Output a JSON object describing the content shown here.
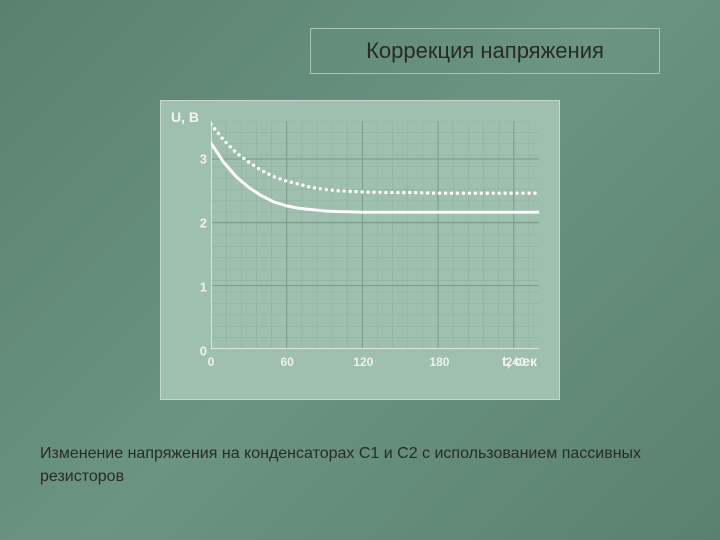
{
  "title": "Коррекция напряжения",
  "caption": "Изменение напряжения на конденсаторах С1 и С2 с использованием пассивных резисторов",
  "chart": {
    "type": "line",
    "background_color": "#9fbfaf",
    "panel_border": "#c5d8cf",
    "grid_major_color": "#7a9a8a",
    "grid_minor_color": "#8fae9e",
    "axis_color": "#f0f0f0",
    "y_axis_label": "U, В",
    "x_axis_label": "t, сек",
    "label_color": "#f5f5f5",
    "label_fontsize": 14,
    "tick_fontsize": 13,
    "tick_color": "#f0f0f0",
    "xlim": [
      0,
      260
    ],
    "ylim": [
      0,
      3.6
    ],
    "x_ticks": [
      0,
      60,
      120,
      180,
      240
    ],
    "y_ticks": [
      0,
      1,
      2,
      3
    ],
    "x_minor_step": 12,
    "y_minor_step": 0.18,
    "series": [
      {
        "name": "C1_dotted",
        "style": "dotted",
        "color": "#ffffff",
        "width": 2.5,
        "dot_radius": 1.7,
        "dot_gap": 6,
        "points": [
          [
            0,
            3.55
          ],
          [
            10,
            3.3
          ],
          [
            20,
            3.1
          ],
          [
            30,
            2.95
          ],
          [
            40,
            2.82
          ],
          [
            50,
            2.72
          ],
          [
            60,
            2.65
          ],
          [
            70,
            2.6
          ],
          [
            80,
            2.55
          ],
          [
            90,
            2.52
          ],
          [
            100,
            2.5
          ],
          [
            120,
            2.48
          ],
          [
            140,
            2.47
          ],
          [
            160,
            2.47
          ],
          [
            180,
            2.46
          ],
          [
            200,
            2.46
          ],
          [
            220,
            2.46
          ],
          [
            240,
            2.46
          ],
          [
            260,
            2.46
          ]
        ]
      },
      {
        "name": "C2_solid",
        "style": "solid",
        "color": "#ffffff",
        "width": 3,
        "points": [
          [
            0,
            3.25
          ],
          [
            10,
            2.95
          ],
          [
            20,
            2.72
          ],
          [
            30,
            2.55
          ],
          [
            40,
            2.42
          ],
          [
            50,
            2.32
          ],
          [
            60,
            2.26
          ],
          [
            70,
            2.22
          ],
          [
            80,
            2.2
          ],
          [
            90,
            2.18
          ],
          [
            100,
            2.17
          ],
          [
            120,
            2.16
          ],
          [
            140,
            2.16
          ],
          [
            160,
            2.16
          ],
          [
            180,
            2.16
          ],
          [
            200,
            2.16
          ],
          [
            220,
            2.16
          ],
          [
            240,
            2.16
          ],
          [
            260,
            2.16
          ]
        ]
      }
    ]
  }
}
